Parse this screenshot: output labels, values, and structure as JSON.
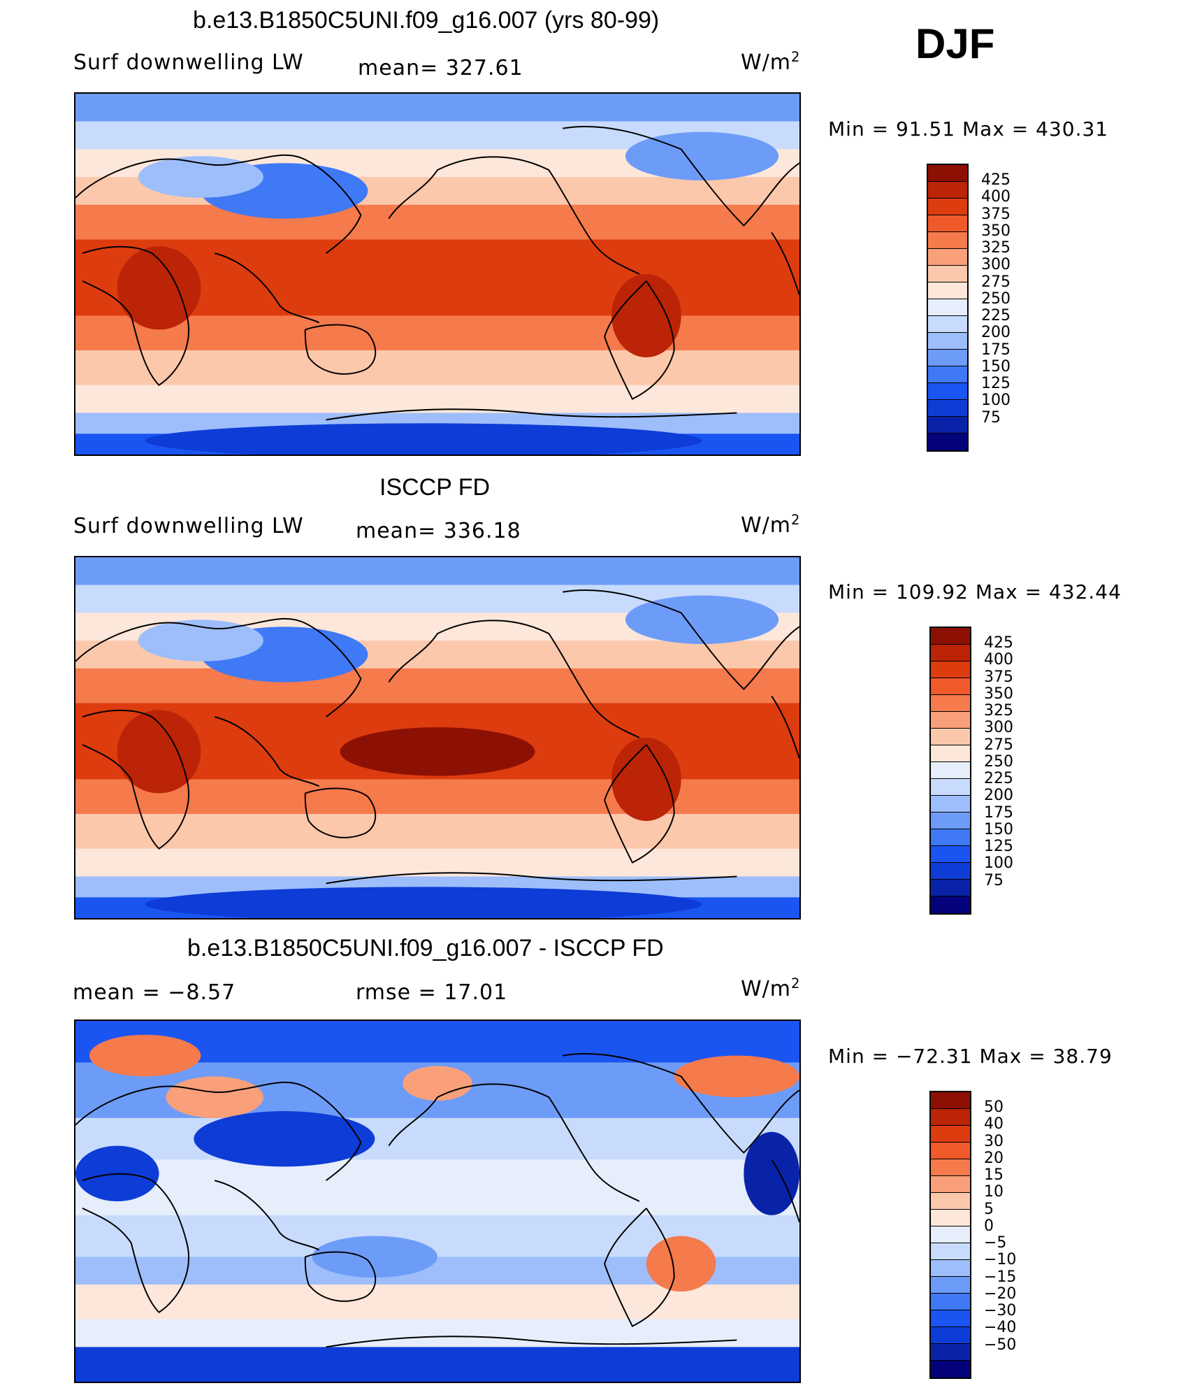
{
  "season": "DJF",
  "colors": {
    "abs_scale": [
      "#04027a",
      "#0923a8",
      "#0e3cd6",
      "#1a55f2",
      "#3f79f6",
      "#6d9cf8",
      "#9dbefa",
      "#c8dbfc",
      "#e6eefc",
      "#fde7da",
      "#fcc8ac",
      "#f9a07a",
      "#f57a4c",
      "#f05a2a",
      "#dd3c0f",
      "#bb2406",
      "#8c1004"
    ],
    "diff_scale": [
      "#04027a",
      "#0923a8",
      "#0e3cd6",
      "#1a55f2",
      "#3f79f6",
      "#6d9cf8",
      "#9dbefa",
      "#c8dbfc",
      "#e6eefc",
      "#fde7da",
      "#fcc8ac",
      "#f9a07a",
      "#f57a4c",
      "#f05a2a",
      "#dd3c0f",
      "#bb2406",
      "#8c1004"
    ],
    "coast": "#000000"
  },
  "panels": [
    {
      "title": "b.e13.B1850C5UNI.f09_g16.007 (yrs 80-99)",
      "left_label": "Surf  downwelling  LW",
      "mid_label": "mean=  327.61",
      "units": "W/m",
      "units_sup": "2",
      "minmax": "Min  =    91.51  Max  =  430.31",
      "colorbar_labels": [
        "425",
        "400",
        "375",
        "350",
        "325",
        "300",
        "275",
        "250",
        "225",
        "200",
        "175",
        "150",
        "125",
        "100",
        "75"
      ]
    },
    {
      "title": "ISCCP FD",
      "left_label": "Surf  downwelling  LW",
      "mid_label": "mean=  336.18",
      "units": "W/m",
      "units_sup": "2",
      "minmax": "Min  =  109.92  Max  =  432.44",
      "colorbar_labels": [
        "425",
        "400",
        "375",
        "350",
        "325",
        "300",
        "275",
        "250",
        "225",
        "200",
        "175",
        "150",
        "125",
        "100",
        "75"
      ]
    },
    {
      "title": "b.e13.B1850C5UNI.f09_g16.007 - ISCCP FD",
      "left_label": "mean  =    −8.57",
      "mid_label": "rmse  =    17.01",
      "units": "W/m",
      "units_sup": "2",
      "minmax": "Min  =  −72.31  Max  =    38.79",
      "colorbar_labels": [
        "50",
        "40",
        "30",
        "20",
        "15",
        "10",
        "5",
        "0",
        "−5",
        "−10",
        "−15",
        "−20",
        "−30",
        "−40",
        "−50"
      ]
    }
  ]
}
